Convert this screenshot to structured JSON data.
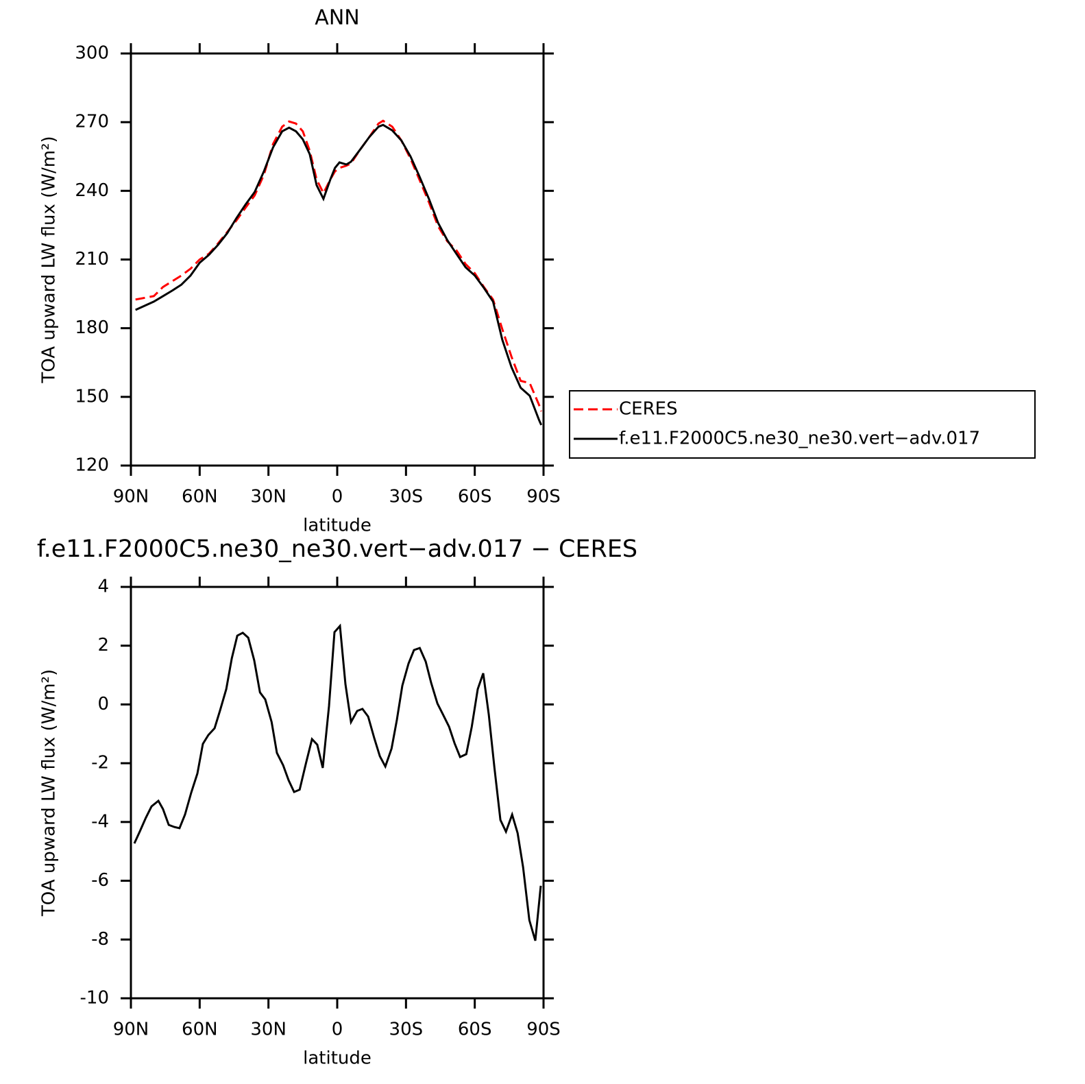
{
  "chart_data": [
    {
      "type": "line",
      "title": "ANN",
      "xlabel": "latitude",
      "ylabel": "TOA upward LW flux (W/m²)",
      "xlim": [
        90,
        -90
      ],
      "xticks": [
        {
          "value": 90,
          "label": "90N"
        },
        {
          "value": 60,
          "label": "60N"
        },
        {
          "value": 30,
          "label": "30N"
        },
        0,
        {
          "value": -30,
          "label": "30S"
        },
        {
          "value": -60,
          "label": "60S"
        },
        {
          "value": -90,
          "label": "90S"
        }
      ],
      "ylim": [
        120,
        300
      ],
      "yticks": [
        120,
        150,
        180,
        210,
        240,
        270,
        300
      ],
      "legend": "right",
      "x": [
        88,
        80,
        76,
        72,
        68,
        64,
        60,
        56,
        52,
        48,
        44,
        40,
        36,
        32,
        28,
        24,
        21,
        18,
        15,
        12,
        9,
        6,
        3,
        1,
        -1,
        -4,
        -6,
        -10,
        -14,
        -18,
        -20,
        -24,
        -28,
        -32,
        -36,
        -40,
        -44,
        -48,
        -52,
        -56,
        -60,
        -64,
        -68,
        -72,
        -76,
        -80,
        -84,
        -88,
        -89
      ],
      "series": [
        {
          "name": "CERES",
          "color": "#ff0000",
          "line_style": "dashed",
          "values": [
            192.5,
            194,
            198,
            200.5,
            203,
            206,
            210,
            212.5,
            217,
            222,
            227,
            232.6,
            238,
            247,
            260.5,
            268,
            270.3,
            269.4,
            266,
            257.5,
            245,
            239,
            245,
            248.5,
            250,
            251,
            252,
            258,
            263.5,
            269.4,
            270.6,
            268,
            262,
            254,
            244.6,
            235,
            224.5,
            218,
            214,
            208,
            204,
            198,
            192.5,
            179.6,
            167.6,
            157,
            156,
            146.6,
            143.7
          ]
        },
        {
          "name": "f.e11.F2000C5.ne30_ne30.vert−adv.017",
          "color": "#000000",
          "line_style": "solid",
          "values": [
            188,
            191.6,
            194,
            196.4,
            199,
            203,
            208.6,
            212,
            216.4,
            221.5,
            228,
            234,
            239.5,
            248.5,
            259,
            266,
            267.6,
            266,
            262.5,
            256,
            242.5,
            236.5,
            245,
            250,
            252.4,
            251.5,
            252.7,
            258,
            263.5,
            268,
            268.8,
            266.4,
            262,
            255,
            246,
            236.5,
            226,
            218.5,
            212.5,
            206.6,
            203,
            197.6,
            191.6,
            175,
            163,
            154,
            150.5,
            140,
            137.7
          ]
        }
      ]
    },
    {
      "type": "line",
      "title": "f.e11.F2000C5.ne30_ne30.vert−adv.017 − CERES",
      "xlabel": "latitude",
      "ylabel": "TOA upward LW flux (W/m²)",
      "xlim": [
        90,
        -90
      ],
      "xticks": [
        {
          "value": 90,
          "label": "90N"
        },
        {
          "value": 60,
          "label": "60N"
        },
        {
          "value": 30,
          "label": "30N"
        },
        0,
        {
          "value": -30,
          "label": "30S"
        },
        {
          "value": -60,
          "label": "60S"
        },
        {
          "value": -90,
          "label": "90S"
        }
      ],
      "ylim": [
        -10,
        4
      ],
      "yticks": [
        -10,
        -8,
        -6,
        -4,
        -2,
        0,
        2,
        4
      ],
      "x": [
        88.5,
        86,
        83.5,
        81,
        78,
        76,
        73.5,
        71.1,
        68.8,
        66.4,
        63.7,
        61,
        58.6,
        56.2,
        53.5,
        51.1,
        48.4,
        46,
        43.6,
        41.2,
        38.8,
        36.2,
        33.7,
        31.4,
        28.6,
        26.3,
        23.6,
        21.2,
        18.8,
        16.4,
        13.7,
        11,
        8.7,
        6.3,
        3.6,
        1.2,
        -1.2,
        -3.6,
        -6,
        -8.7,
        -11,
        -13.5,
        -16.2,
        -18.6,
        -21,
        -23.7,
        -26,
        -28.4,
        -31.1,
        -33.5,
        -36,
        -38.6,
        -41,
        -43.7,
        -46,
        -48.8,
        -51.2,
        -53.6,
        -56.3,
        -58.7,
        -61.3,
        -63.7,
        -66.1,
        -68.6,
        -71.2,
        -73.6,
        -76.3,
        -78.7,
        -81.1,
        -83.8,
        -86.4,
        -88.8
      ],
      "series": [
        {
          "color": "#000000",
          "line_style": "solid",
          "values": [
            -4.73,
            -4.3,
            -3.86,
            -3.47,
            -3.28,
            -3.56,
            -4.1,
            -4.17,
            -4.21,
            -3.75,
            -3.0,
            -2.35,
            -1.34,
            -1.04,
            -0.81,
            -0.2,
            0.52,
            1.57,
            2.34,
            2.44,
            2.27,
            1.5,
            0.41,
            0.17,
            -0.6,
            -1.65,
            -2.07,
            -2.58,
            -2.98,
            -2.9,
            -2.02,
            -1.18,
            -1.37,
            -2.16,
            -0.06,
            2.46,
            2.67,
            0.69,
            -0.6,
            -0.22,
            -0.15,
            -0.41,
            -1.16,
            -1.76,
            -2.11,
            -1.5,
            -0.53,
            0.64,
            1.39,
            1.85,
            1.92,
            1.46,
            0.73,
            0.03,
            -0.32,
            -0.76,
            -1.32,
            -1.79,
            -1.69,
            -0.76,
            0.52,
            1.06,
            -0.34,
            -2.16,
            -3.93,
            -4.33,
            -3.75,
            -4.38,
            -5.54,
            -7.34,
            -8.04,
            -6.17
          ]
        }
      ]
    }
  ]
}
